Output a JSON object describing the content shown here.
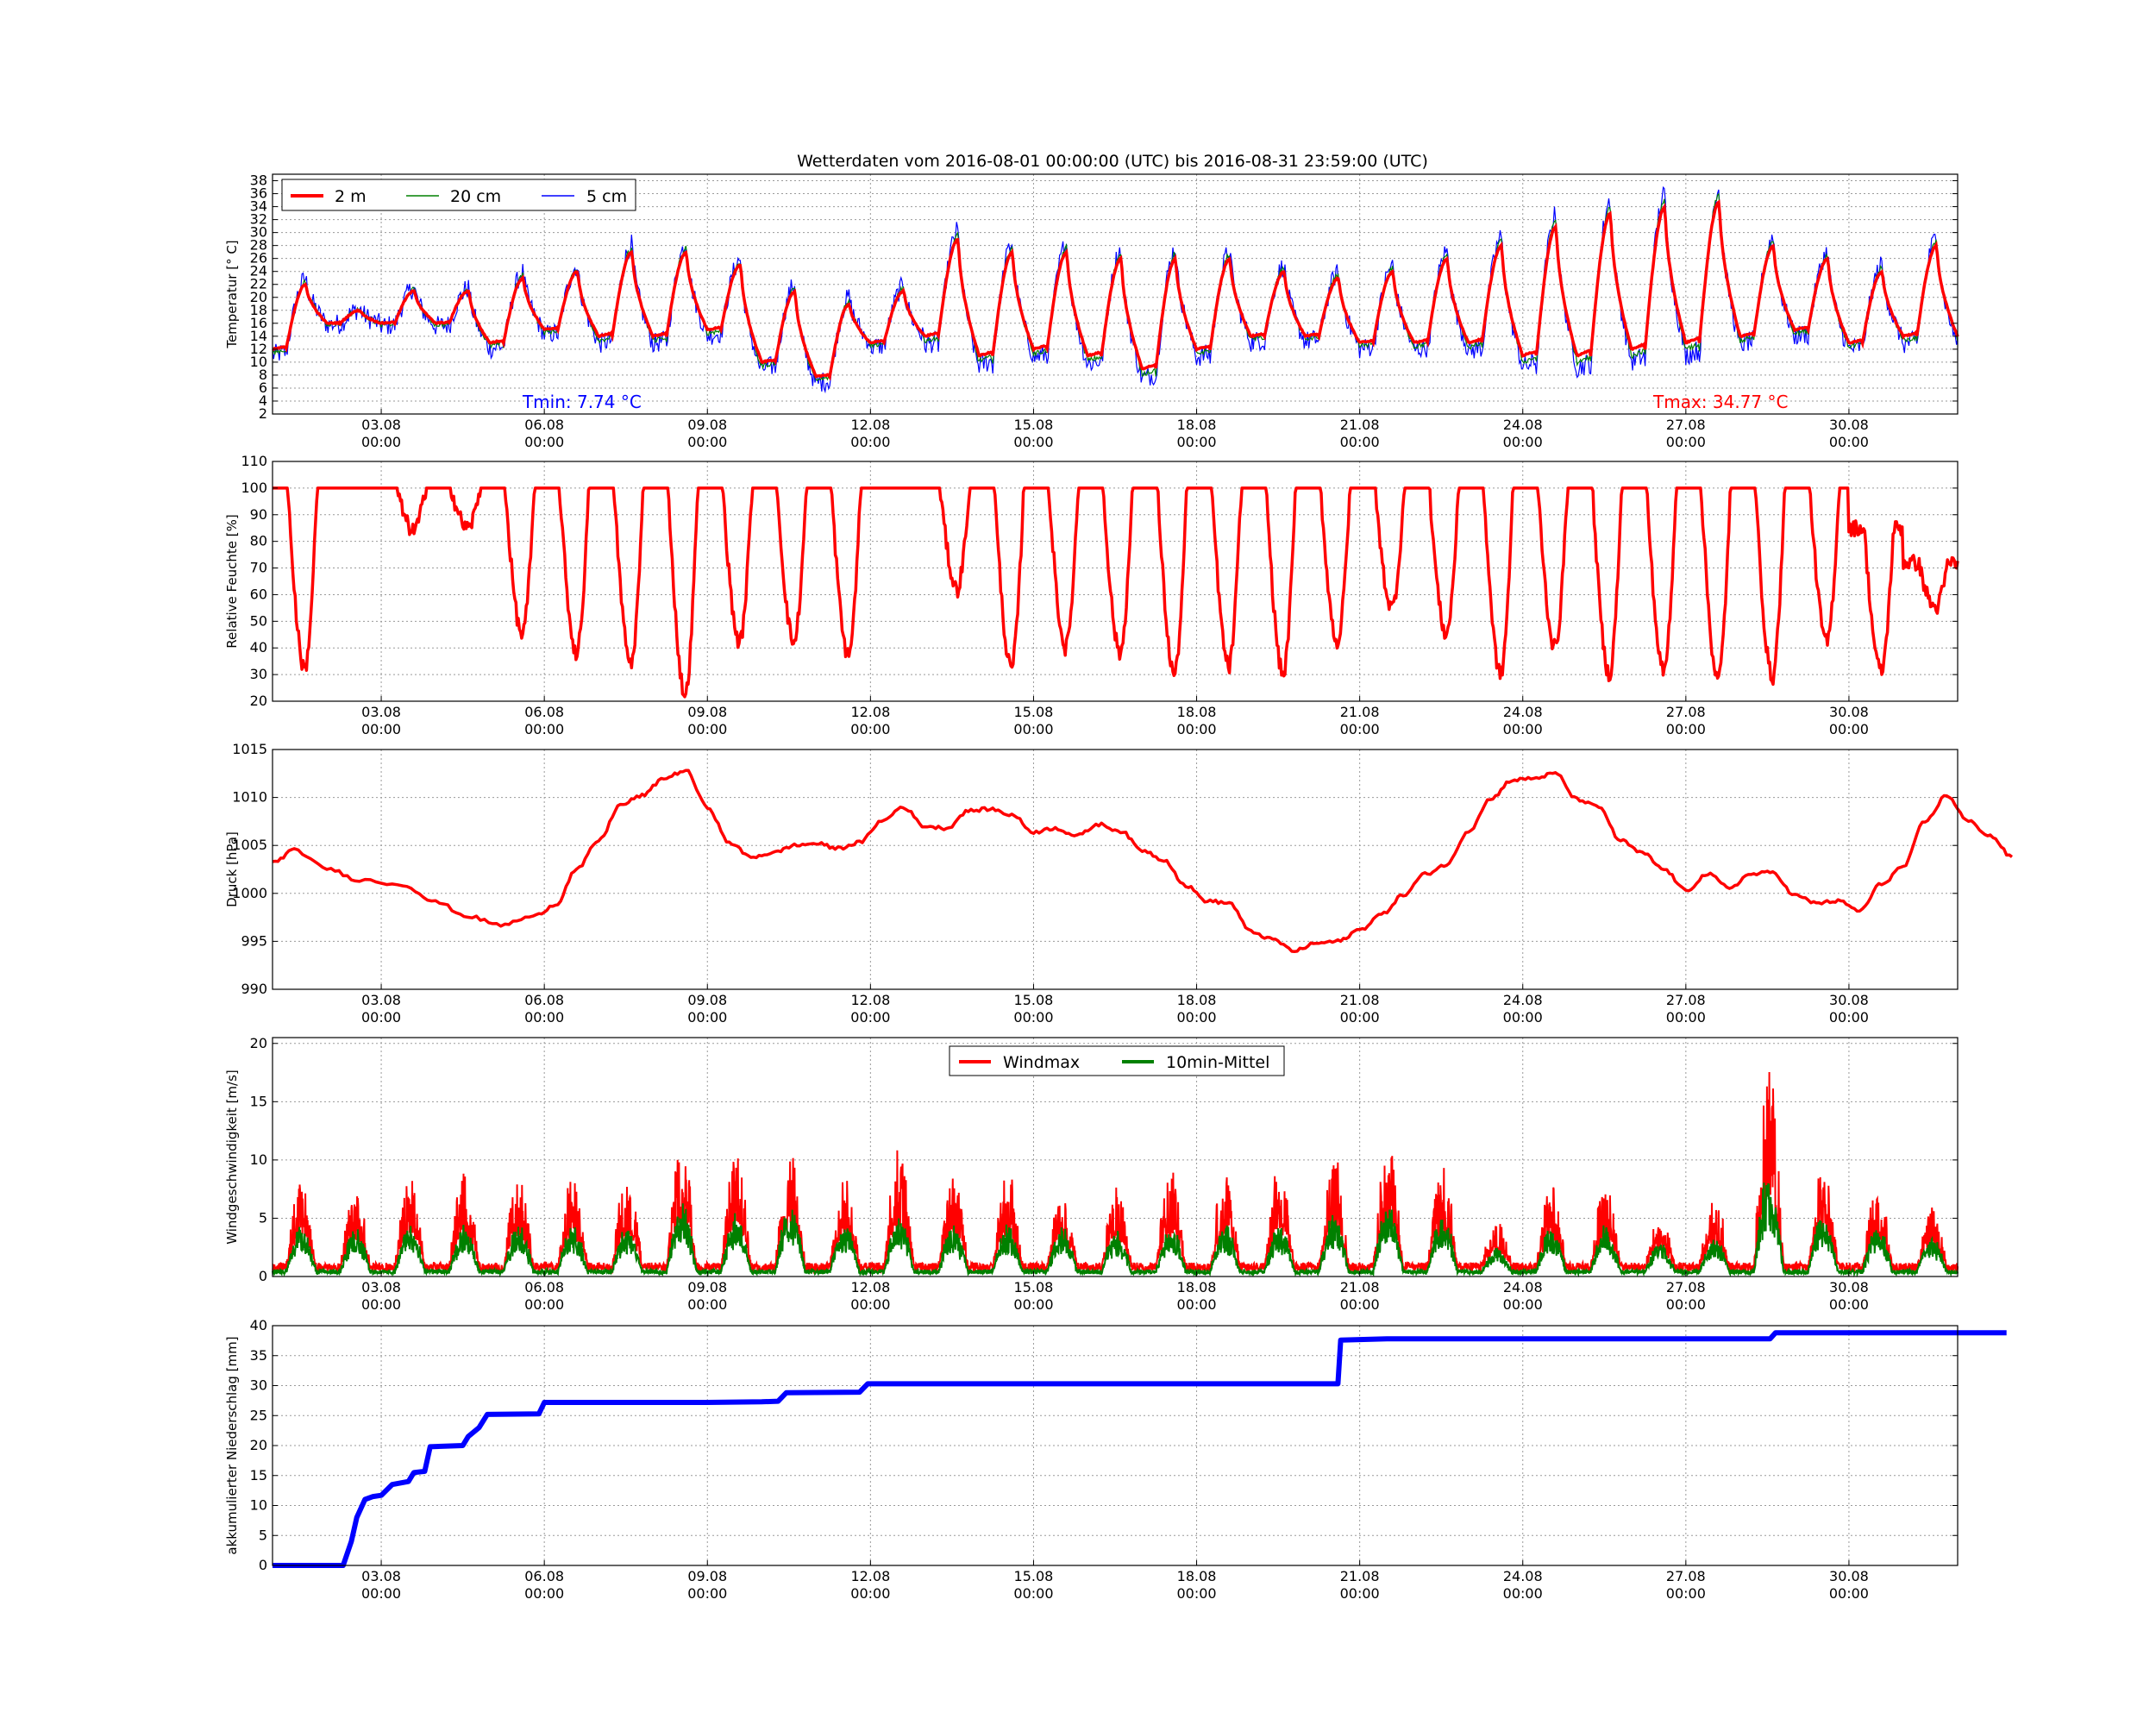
{
  "chart_data": [
    {
      "panel": "temperature",
      "type": "line",
      "title": "Wetterdaten vom 2016-08-01 00:00:00 (UTC) bis 2016-08-31 23:59:00 (UTC)",
      "ylabel": "Temperatur [° C]",
      "ylim": [
        2,
        39
      ],
      "yticks": [
        2,
        4,
        6,
        8,
        10,
        12,
        14,
        16,
        18,
        20,
        22,
        24,
        26,
        28,
        30,
        32,
        34,
        36,
        38
      ],
      "xlim": [
        "2016-08-01 00:00",
        "2016-09-01 00:00"
      ],
      "xticks": [
        "03.08",
        "06.08",
        "09.08",
        "12.08",
        "15.08",
        "18.08",
        "21.08",
        "24.08",
        "27.08",
        "30.08"
      ],
      "xticks_time": "00:00",
      "legend": {
        "placement": "top-left",
        "entries": [
          "2 m",
          "20 cm",
          "5 cm"
        ]
      },
      "grid": true,
      "daily_min_2m": [
        12,
        16,
        16,
        16,
        13,
        15,
        14,
        14,
        15,
        10,
        7.74,
        13,
        14,
        11,
        12,
        11,
        9,
        12,
        14,
        14,
        13,
        13,
        13,
        11,
        11,
        12,
        13,
        14,
        15,
        13,
        14
      ],
      "daily_max_2m": [
        22,
        18,
        21,
        21,
        23,
        24,
        27,
        27,
        25,
        21,
        19,
        21,
        29,
        27,
        27,
        26,
        26,
        26,
        24,
        23,
        24,
        26,
        28,
        31,
        33,
        34,
        34.77,
        28,
        26,
        24,
        28
      ],
      "annotations": [
        {
          "text": "Tmin: 7.74 °C",
          "color": "#0000ff"
        },
        {
          "text": "Tmax: 34.77 °C",
          "color": "#ff0000"
        }
      ],
      "series": [
        {
          "name": "2 m",
          "color": "#ff0000"
        },
        {
          "name": "20 cm",
          "color": "#008000"
        },
        {
          "name": "5 cm",
          "color": "#0000ff"
        }
      ]
    },
    {
      "panel": "humidity",
      "type": "line",
      "ylabel": "Relative Feuchte [%]",
      "ylim": [
        20,
        110
      ],
      "yticks": [
        20,
        30,
        40,
        50,
        60,
        70,
        80,
        90,
        100,
        110
      ],
      "grid": true,
      "daily_min": [
        32,
        100,
        84,
        85,
        45,
        38,
        34,
        22,
        42,
        42,
        37,
        100,
        62,
        32,
        40,
        38,
        30,
        33,
        30,
        42,
        55,
        45,
        30,
        40,
        30,
        31,
        28,
        29,
        42,
        31,
        55
      ],
      "daily_max": [
        100,
        100,
        100,
        100,
        100,
        100,
        100,
        100,
        100,
        100,
        100,
        100,
        100,
        100,
        100,
        100,
        100,
        100,
        100,
        100,
        100,
        100,
        100,
        100,
        100,
        100,
        100,
        100,
        100,
        85,
        72
      ],
      "series": [
        {
          "color": "#ff0000"
        }
      ]
    },
    {
      "panel": "pressure",
      "type": "line",
      "ylabel": "Druck [hPa]",
      "ylim": [
        990,
        1015
      ],
      "yticks": [
        990,
        995,
        1000,
        1005,
        1010,
        1015
      ],
      "grid": true,
      "points": [
        [
          0,
          1003.2
        ],
        [
          0.4,
          1004.5
        ],
        [
          1.0,
          1002.6
        ],
        [
          1.6,
          1001.4
        ],
        [
          2.4,
          1000.9
        ],
        [
          3.0,
          999.1
        ],
        [
          3.6,
          997.6
        ],
        [
          4.2,
          996.7
        ],
        [
          4.8,
          997.6
        ],
        [
          5.2,
          998.8
        ],
        [
          5.6,
          1002.5
        ],
        [
          6.0,
          1005.5
        ],
        [
          6.4,
          1009.2
        ],
        [
          6.8,
          1010.2
        ],
        [
          7.2,
          1012.0
        ],
        [
          7.6,
          1012.8
        ],
        [
          8.0,
          1009.0
        ],
        [
          8.4,
          1005.3
        ],
        [
          8.8,
          1003.8
        ],
        [
          9.2,
          1004.2
        ],
        [
          9.6,
          1005.0
        ],
        [
          10.0,
          1005.2
        ],
        [
          10.4,
          1004.7
        ],
        [
          10.8,
          1005.3
        ],
        [
          11.2,
          1007.5
        ],
        [
          11.6,
          1009.0
        ],
        [
          12.0,
          1007.0
        ],
        [
          12.4,
          1006.8
        ],
        [
          12.8,
          1008.6
        ],
        [
          13.2,
          1008.8
        ],
        [
          13.6,
          1008.2
        ],
        [
          14.0,
          1006.4
        ],
        [
          14.4,
          1006.8
        ],
        [
          14.8,
          1006.0
        ],
        [
          15.2,
          1007.2
        ],
        [
          15.6,
          1006.5
        ],
        [
          16.0,
          1004.5
        ],
        [
          16.4,
          1003.5
        ],
        [
          16.8,
          1000.8
        ],
        [
          17.2,
          999.2
        ],
        [
          17.6,
          999.0
        ],
        [
          18.0,
          996.0
        ],
        [
          18.4,
          995.2
        ],
        [
          18.8,
          994.0
        ],
        [
          19.2,
          994.8
        ],
        [
          19.6,
          995.0
        ],
        [
          20.0,
          996.2
        ],
        [
          20.4,
          997.8
        ],
        [
          20.8,
          999.8
        ],
        [
          21.2,
          1002.0
        ],
        [
          21.6,
          1003.0
        ],
        [
          22.0,
          1006.5
        ],
        [
          22.4,
          1009.8
        ],
        [
          22.8,
          1011.8
        ],
        [
          23.2,
          1012.0
        ],
        [
          23.6,
          1012.5
        ],
        [
          24.0,
          1009.8
        ],
        [
          24.4,
          1009.0
        ],
        [
          24.8,
          1005.5
        ],
        [
          25.2,
          1004.2
        ],
        [
          25.6,
          1002.5
        ],
        [
          26.0,
          1000.3
        ],
        [
          26.4,
          1002.0
        ],
        [
          26.8,
          1000.6
        ],
        [
          27.2,
          1002.0
        ],
        [
          27.6,
          1002.2
        ],
        [
          28.0,
          999.8
        ],
        [
          28.4,
          999.0
        ],
        [
          28.8,
          999.2
        ],
        [
          29.2,
          998.2
        ],
        [
          29.6,
          1001.0
        ],
        [
          30.0,
          1002.8
        ],
        [
          30.4,
          1007.5
        ],
        [
          30.8,
          1010.2
        ],
        [
          31.2,
          1007.5
        ],
        [
          31.6,
          1006.0
        ],
        [
          32.0,
          1003.8
        ]
      ],
      "series": [
        {
          "color": "#ff0000"
        }
      ]
    },
    {
      "panel": "wind",
      "type": "line",
      "ylabel": "Windgeschwindigkeit [m/s]",
      "ylim": [
        0,
        20.5
      ],
      "yticks": [
        0,
        5,
        10,
        15,
        20
      ],
      "grid": true,
      "legend": {
        "placement": "top-center",
        "entries": [
          "Windmax",
          "10min-Mittel"
        ]
      },
      "daily_peak_windmax": [
        8,
        7,
        8,
        8,
        8,
        8,
        8,
        11,
        10,
        11,
        8,
        10,
        8,
        8,
        7,
        7,
        8,
        8,
        9,
        10,
        11,
        9,
        4,
        7,
        7,
        5,
        6,
        17.5,
        9,
        7,
        5
      ],
      "daily_peak_mean": [
        4,
        4,
        4,
        4,
        4,
        4,
        4,
        6.5,
        5,
        6,
        4,
        5,
        4,
        4,
        4,
        3.5,
        4,
        4,
        4,
        5,
        6,
        5,
        2,
        4,
        4,
        2.5,
        3,
        9,
        5,
        4,
        3
      ],
      "series": [
        {
          "name": "Windmax",
          "color": "#ff0000"
        },
        {
          "name": "10min-Mittel",
          "color": "#008000"
        }
      ]
    },
    {
      "panel": "precipitation",
      "type": "line",
      "ylabel": "akkumulierter Niederschlag [mm]",
      "ylim": [
        0,
        40
      ],
      "yticks": [
        0,
        5,
        10,
        15,
        20,
        25,
        30,
        35,
        40
      ],
      "grid": true,
      "points": [
        [
          0,
          0
        ],
        [
          1.3,
          0
        ],
        [
          1.45,
          4
        ],
        [
          1.55,
          8
        ],
        [
          1.7,
          11
        ],
        [
          1.85,
          11.5
        ],
        [
          2.0,
          11.7
        ],
        [
          2.2,
          13.5
        ],
        [
          2.5,
          14
        ],
        [
          2.6,
          15.5
        ],
        [
          2.8,
          15.7
        ],
        [
          2.9,
          19.8
        ],
        [
          3.5,
          20
        ],
        [
          3.6,
          21.5
        ],
        [
          3.8,
          23
        ],
        [
          3.95,
          25.2
        ],
        [
          4.9,
          25.3
        ],
        [
          5.0,
          27.2
        ],
        [
          8.0,
          27.2
        ],
        [
          9.0,
          27.3
        ],
        [
          9.3,
          27.4
        ],
        [
          9.45,
          28.8
        ],
        [
          10.8,
          28.9
        ],
        [
          10.95,
          30.3
        ],
        [
          19.6,
          30.3
        ],
        [
          19.65,
          37.6
        ],
        [
          20.5,
          37.8
        ],
        [
          27.55,
          37.8
        ],
        [
          27.65,
          38.8
        ],
        [
          31.9,
          38.8
        ]
      ],
      "series": [
        {
          "color": "#0000ff"
        }
      ]
    }
  ]
}
